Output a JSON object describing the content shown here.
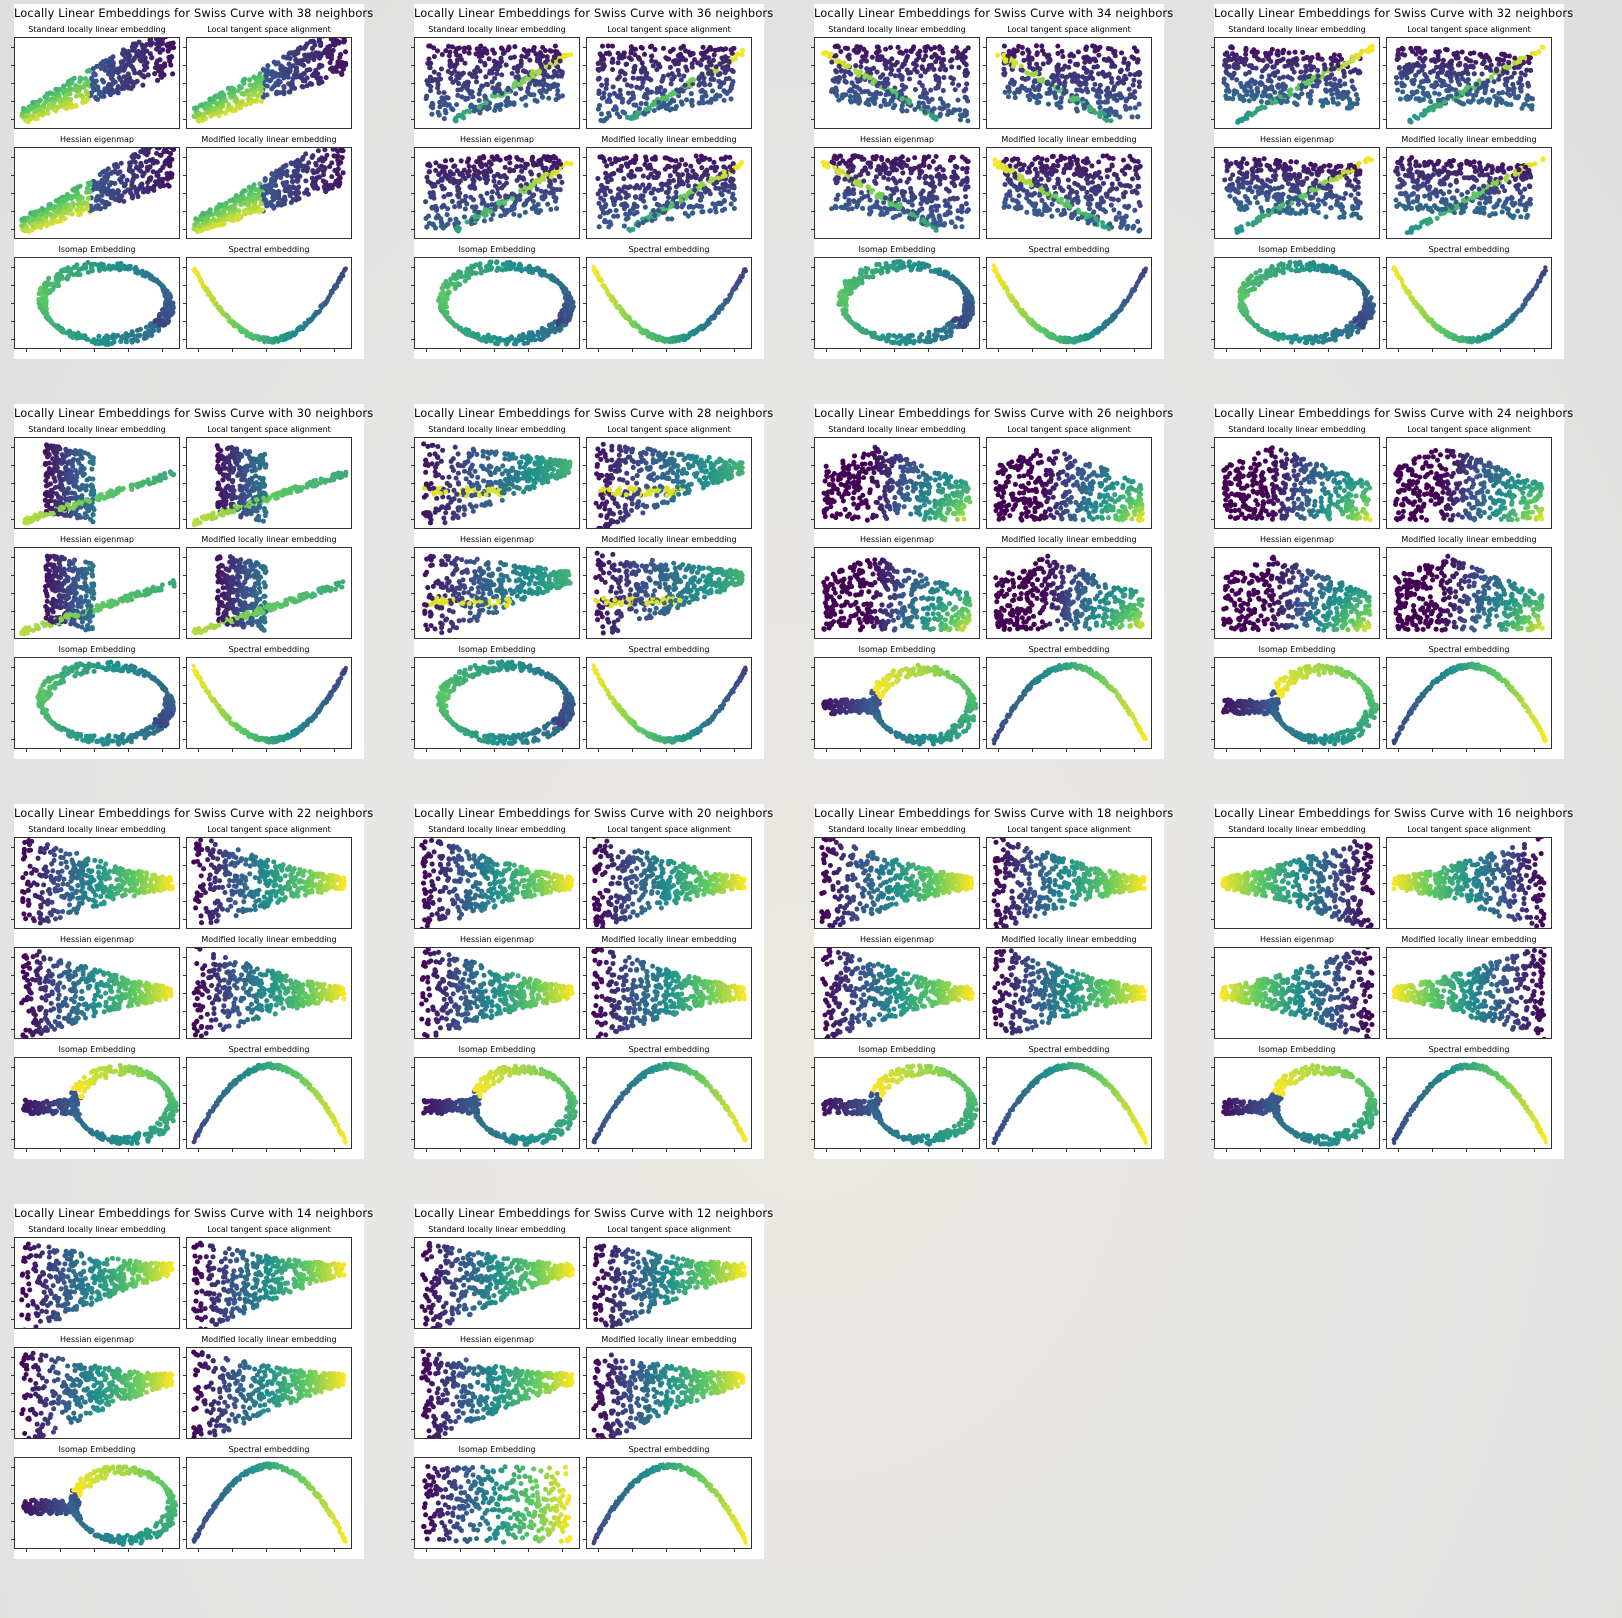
{
  "figures": [
    {
      "title": "Locally Linear Embeddings for Swiss Curve with 38 neighbors"
    },
    {
      "title": "Locally Linear Embeddings for Swiss Curve with 36 neighbors"
    },
    {
      "title": "Locally Linear Embeddings for Swiss Curve with 34 neighbors"
    },
    {
      "title": "Locally Linear Embeddings for Swiss Curve with 32 neighbors"
    },
    {
      "title": "Locally Linear Embeddings for Swiss Curve with 30 neighbors"
    },
    {
      "title": "Locally Linear Embeddings for Swiss Curve with 28 neighbors"
    },
    {
      "title": "Locally Linear Embeddings for Swiss Curve with 26 neighbors"
    },
    {
      "title": "Locally Linear Embeddings for Swiss Curve with 24 neighbors"
    },
    {
      "title": "Locally Linear Embeddings for Swiss Curve with 22 neighbors"
    },
    {
      "title": "Locally Linear Embeddings for Swiss Curve with 20 neighbors"
    },
    {
      "title": "Locally Linear Embeddings for Swiss Curve with 18 neighbors"
    },
    {
      "title": "Locally Linear Embeddings for Swiss Curve with 16 neighbors"
    },
    {
      "title": "Locally Linear Embeddings for Swiss Curve with 14 neighbors"
    },
    {
      "title": "Locally Linear Embeddings for Swiss Curve with 12 neighbors"
    }
  ],
  "subplot_titles": [
    "Standard locally linear embedding",
    "Local tangent space alignment",
    "Hessian eigenmap",
    "Modified locally linear embedding",
    "Isomap Embedding",
    "Spectral embedding"
  ],
  "chart_data": {
    "type": "scatter",
    "colormap": "viridis",
    "palette": [
      "#440154",
      "#3b528b",
      "#21918c",
      "#5ec962",
      "#fde725"
    ],
    "neighbors": [
      38,
      36,
      34,
      32,
      30,
      28,
      26,
      24,
      22,
      20,
      18,
      16,
      14,
      12
    ],
    "shapes": {
      "llt": [
        "cone",
        "wedge",
        "wedge-flip",
        "bowtie",
        "spike",
        "kite",
        "triangle",
        "triangle",
        "funnel",
        "funnel",
        "funnel",
        "funnel-flip",
        "funnel-tilt",
        "funnel-tilt"
      ],
      "isomap": [
        "ring",
        "ring",
        "ring",
        "ring",
        "ring",
        "ring",
        "ring-tail",
        "ring-tail",
        "ring-tail",
        "ring-tail",
        "loop",
        "loop",
        "loop",
        "band"
      ],
      "spectral": [
        "arc-up",
        "arc-up",
        "arc-up",
        "arc-up",
        "arc-up",
        "arc-up",
        "arc-down",
        "arc-down",
        "arc-down",
        "arc-down",
        "arc-down",
        "arc-down",
        "arc-down",
        "arc-down"
      ]
    },
    "grid": false,
    "tick_labels": "none"
  }
}
